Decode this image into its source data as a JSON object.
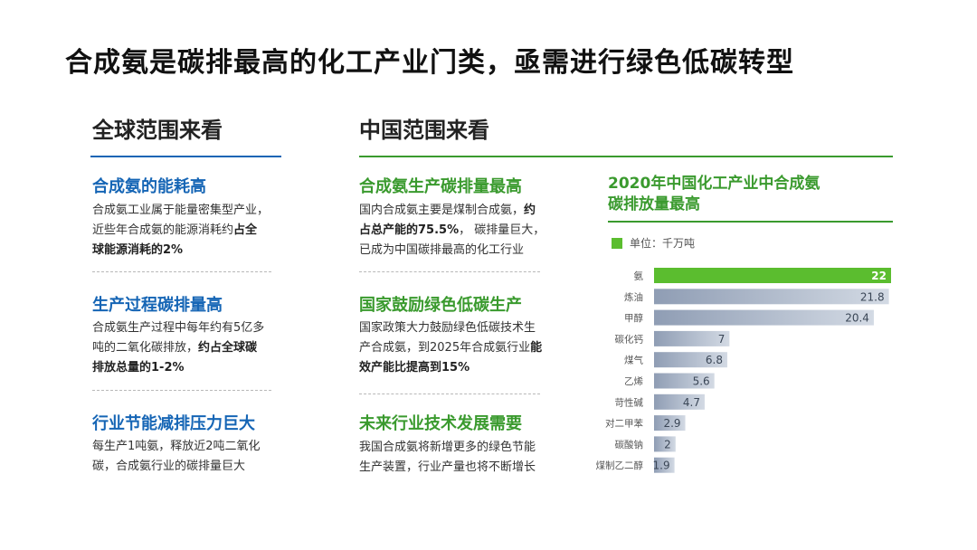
{
  "title": "合成氨是碳排最高的化工产业门类，亟需进行绿色低碳转型",
  "left": {
    "heading": "全球范围来看",
    "sections": [
      {
        "title": "合成氨的能耗高",
        "l1": "合成氨工业属于能量密集型产业，",
        "l2a": "近些年合成氨的能源消耗约",
        "l2b": "占全",
        "l3b": "球能源消耗的2%"
      },
      {
        "title": "生产过程碳排量高",
        "l1": "合成氨生产过程中每年约有5亿多",
        "l2a": "吨的二氧化碳排放，",
        "l2b": "约占全球碳",
        "l3b": "排放总量的1-2%"
      },
      {
        "title": "行业节能减排压力巨大",
        "l1": "每生产1吨氨，释放近2吨二氧化",
        "l2": "碳，合成氨行业的碳排量巨大"
      }
    ]
  },
  "middle": {
    "heading": "中国范围来看",
    "sections": [
      {
        "title": "合成氨生产碳排量最高",
        "l1a": "国内合成氨主要是煤制合成氨，",
        "l1b": "约",
        "l2b": "占总产能的75.5%",
        "l2a": "， 碳排量巨大，",
        "l3": "已成为中国碳排最高的化工行业"
      },
      {
        "title": "国家鼓励绿色低碳生产",
        "l1": "国家政策大力鼓励绿色低碳技术生",
        "l2": "产合成氨，到2025年合成氨行业",
        "l2b": "能",
        "l3b": "效产能比提高到15%"
      },
      {
        "title": "未来行业技术发展需要",
        "l1": "我国合成氨将新增更多的绿色节能",
        "l2": "生产装置，行业产量也将不断增长"
      }
    ]
  },
  "chart_data": {
    "type": "bar",
    "orientation": "horizontal",
    "title": "2020年中国化工产业中合成氨碳排放量最高",
    "title_l1": "2020年中国化工产业中合成氨",
    "title_l2": "碳排放量最高",
    "unit_legend": "单位：千万吨",
    "categories": [
      "氨",
      "炼油",
      "甲醇",
      "碳化钙",
      "煤气",
      "乙烯",
      "苛性碱",
      "对二甲苯",
      "碳酸钠",
      "煤制乙二醇"
    ],
    "values": [
      22,
      21.8,
      20.4,
      7,
      6.8,
      5.6,
      4.7,
      2.9,
      2,
      1.9
    ],
    "value_labels": [
      "22",
      "21.8",
      "20.4",
      "7",
      "6.8",
      "5.6",
      "4.7",
      "2.9",
      "2",
      "1.9"
    ],
    "xlim": [
      0,
      22
    ],
    "colors": {
      "highlight": "#5bbd2f",
      "bar_light": "#d3dae4",
      "bar_dark": "#8f9db4"
    }
  }
}
